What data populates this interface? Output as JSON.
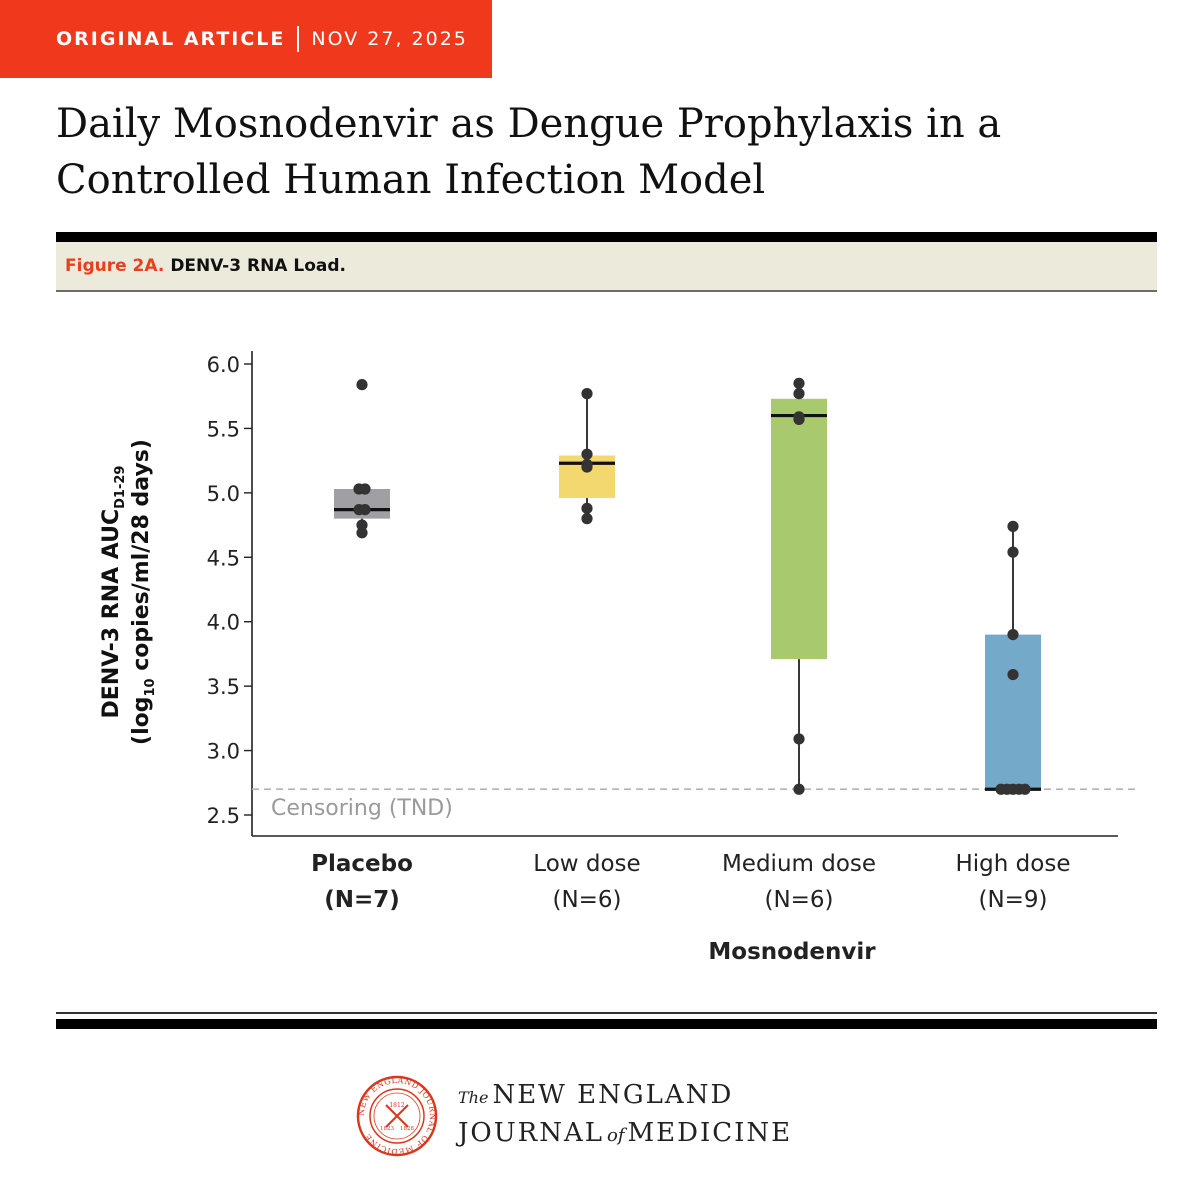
{
  "header": {
    "category": "ORIGINAL ARTICLE",
    "date": "NOV 27, 2025",
    "title": "Daily Mosnodenvir as Dengue Prophylaxis in a Controlled Human Infection Model"
  },
  "figure": {
    "label": "Figure 2A.",
    "caption": "DENV-3 RNA Load."
  },
  "colors": {
    "banner": "#f0391c",
    "placebo": "#a0a0a4",
    "low": "#f2d86e",
    "medium": "#a8c96d",
    "high": "#74a9c9"
  },
  "chart_data": {
    "type": "box",
    "ylabel_main": "DENV-3 RNA AUC",
    "ylabel_sub": "D1-29",
    "ylabel_line2_pre": "(log",
    "ylabel_line2_sub": "10",
    "ylabel_line2_post": " copies/ml/28 days)",
    "ylim": [
      2.5,
      6.0
    ],
    "yticks": [
      "2.5",
      "3.0",
      "3.5",
      "4.0",
      "4.5",
      "5.0",
      "5.5",
      "6.0"
    ],
    "reference_line": {
      "y": 2.7,
      "label": "Censoring (TND)"
    },
    "group_label": "Mosnodenvir",
    "groups": [
      {
        "name": "Placebo",
        "n": "(N=7)",
        "bold": true,
        "color": "#a0a0a4",
        "q1": 4.8,
        "median": 4.87,
        "q3": 5.03,
        "whisker_low": 4.69,
        "whisker_high": 5.03,
        "points": [
          5.84,
          5.03,
          5.03,
          4.87,
          4.87,
          4.75,
          4.69
        ]
      },
      {
        "name": "Low dose",
        "n": "(N=6)",
        "bold": false,
        "color": "#f2d86e",
        "q1": 4.96,
        "median": 5.23,
        "q3": 5.29,
        "whisker_low": 4.8,
        "whisker_high": 5.77,
        "points": [
          5.77,
          5.3,
          5.22,
          5.2,
          4.88,
          4.8
        ]
      },
      {
        "name": "Medium dose",
        "n": "(N=6)",
        "bold": false,
        "color": "#a8c96d",
        "q1": 3.71,
        "median": 5.6,
        "q3": 5.73,
        "whisker_low": 2.7,
        "whisker_high": 5.85,
        "points": [
          5.85,
          5.77,
          5.59,
          5.57,
          3.09,
          2.7
        ]
      },
      {
        "name": "High dose",
        "n": "(N=9)",
        "bold": false,
        "color": "#74a9c9",
        "q1": 2.7,
        "median": 2.7,
        "q3": 3.9,
        "whisker_low": 2.7,
        "whisker_high": 4.74,
        "points": [
          4.74,
          4.54,
          3.9,
          3.59,
          2.7,
          2.7,
          2.7,
          2.7,
          2.7
        ]
      }
    ]
  },
  "footer": {
    "the": "The",
    "journal_line1": "NEW ENGLAND",
    "journal_line2a": "JOURNAL",
    "journal_of": "of",
    "journal_line2b": "MEDICINE",
    "seal_text": "NEW ENGLAND JOURNAL OF MEDICINE",
    "seal_year_1": "1812",
    "seal_year_2": "1823",
    "seal_year_3": "1828"
  }
}
